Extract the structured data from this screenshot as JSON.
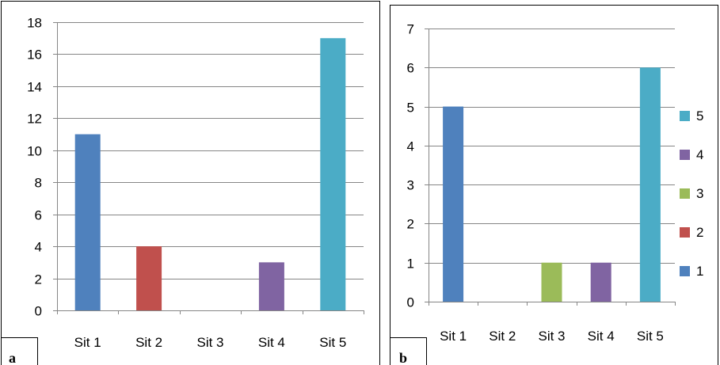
{
  "chart_data": [
    {
      "type": "bar",
      "panel_label": "a",
      "categories": [
        "Sit 1",
        "Sit 2",
        "Sit 3",
        "Sit 4",
        "Sit 5"
      ],
      "values": [
        11,
        4,
        0,
        3,
        17
      ],
      "colors": [
        "#4F81BD",
        "#C0504D",
        "#9BBB59",
        "#8064A2",
        "#4BACC6"
      ],
      "ylim": [
        0,
        18
      ],
      "yticks": [
        0,
        2,
        4,
        6,
        8,
        10,
        12,
        14,
        16,
        18
      ],
      "grid": true,
      "legend": null
    },
    {
      "type": "bar",
      "panel_label": "b",
      "categories": [
        "Sit 1",
        "Sit 2",
        "Sit 3",
        "Sit 4",
        "Sit 5"
      ],
      "values": [
        5,
        0,
        1,
        1,
        6
      ],
      "colors": [
        "#4F81BD",
        "#C0504D",
        "#9BBB59",
        "#8064A2",
        "#4BACC6"
      ],
      "ylim": [
        0,
        7
      ],
      "yticks": [
        0,
        1,
        2,
        3,
        4,
        5,
        6,
        7
      ],
      "grid": true,
      "legend": {
        "placement": "right",
        "entries": [
          {
            "label": "5",
            "color": "#4BACC6"
          },
          {
            "label": "4",
            "color": "#8064A2"
          },
          {
            "label": "3",
            "color": "#9BBB59"
          },
          {
            "label": "2",
            "color": "#C0504D"
          },
          {
            "label": "1",
            "color": "#4F81BD"
          }
        ]
      }
    }
  ]
}
